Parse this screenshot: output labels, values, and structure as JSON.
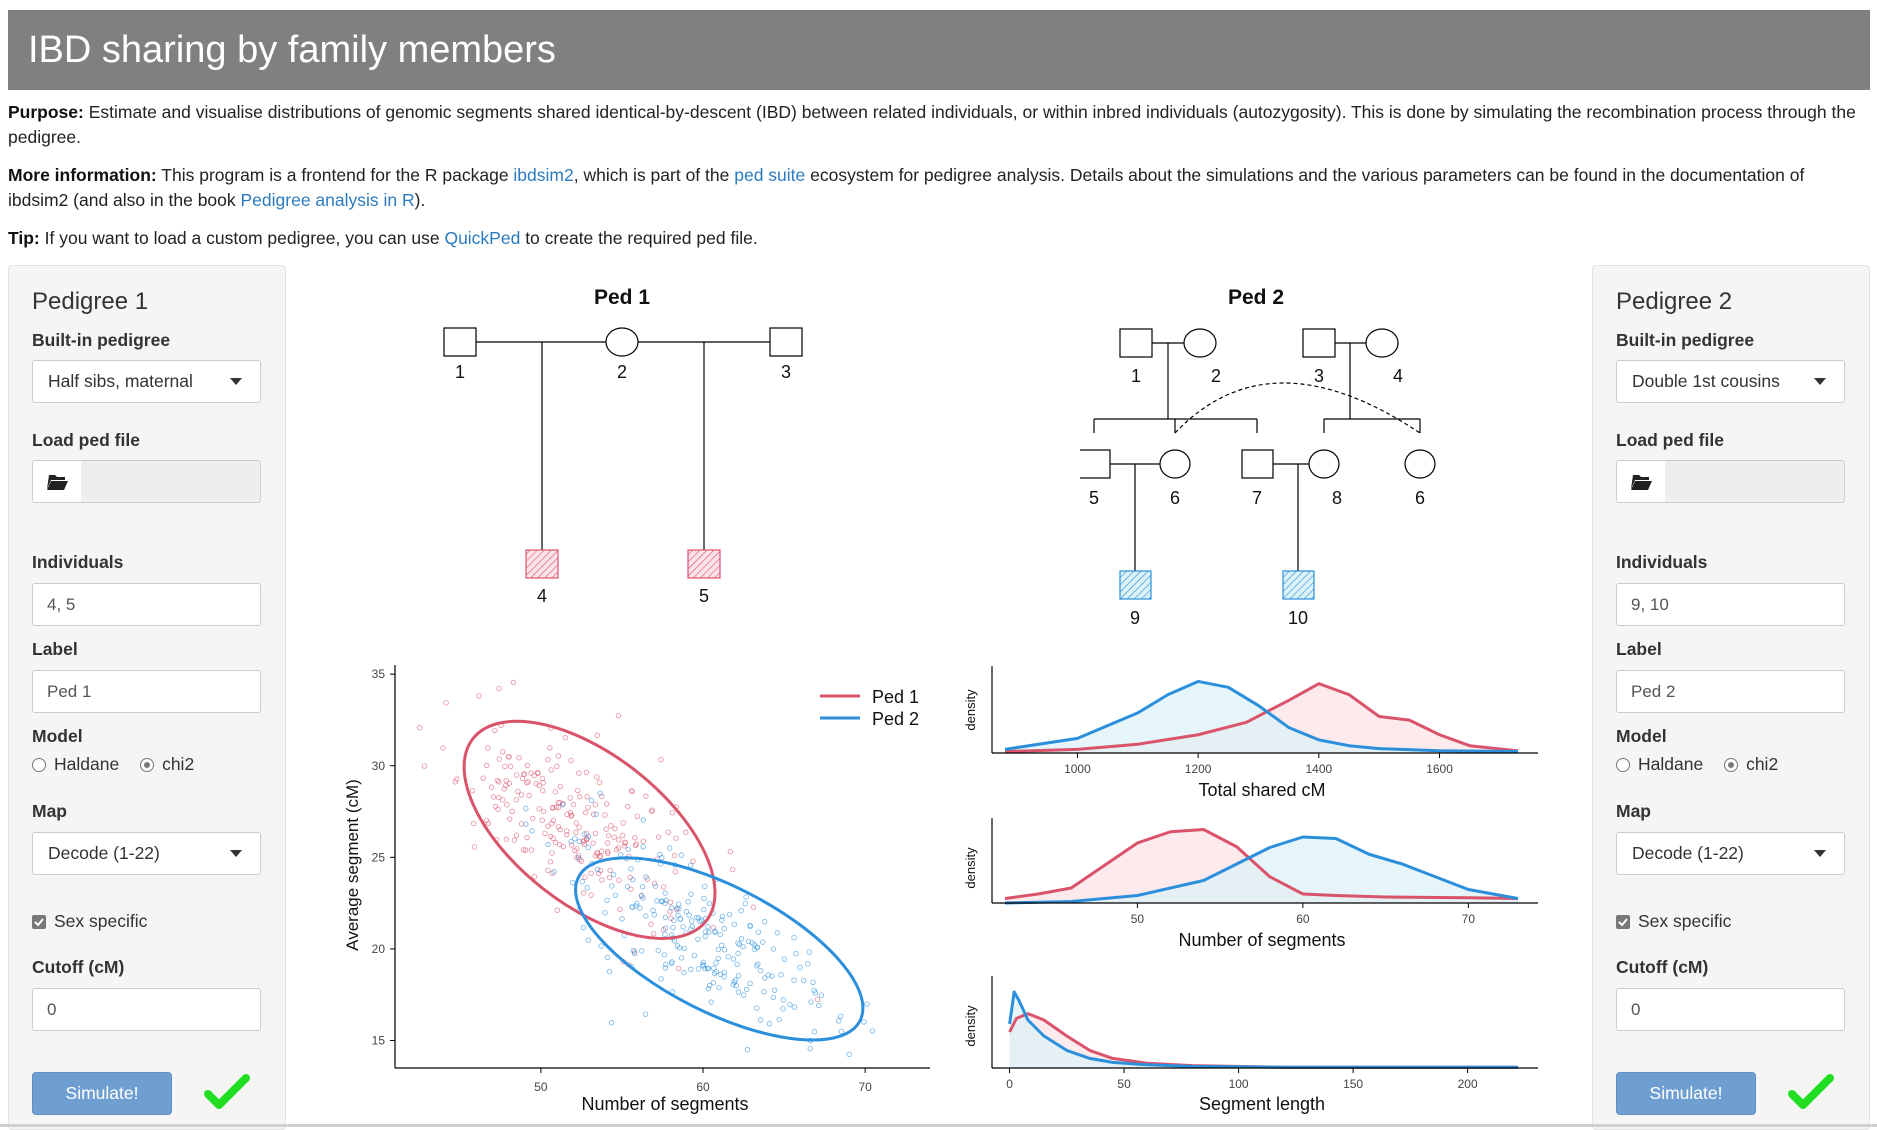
{
  "app": {
    "title": "IBD sharing by family members"
  },
  "intro": {
    "purpose_label": "Purpose:",
    "purpose_text": " Estimate and visualise distributions of genomic segments shared identical-by-descent (IBD) between related individuals, or within inbred individuals (autozygosity). This is done by simulating the recombination process through the pedigree.",
    "more_label": "More information:",
    "more_text_1": " This program is a frontend for the R package ",
    "more_link_1": "ibdsim2",
    "more_text_2": ", which is part of the ",
    "more_link_2": "ped suite",
    "more_text_3": " ecosystem for pedigree analysis. Details about the simulations and the various parameters can be found in the documentation of ibdsim2 (and also in the book ",
    "more_link_3": "Pedigree analysis in R",
    "more_text_4": ").",
    "tip_label": "Tip:",
    "tip_text_1": " If you want to load a custom pedigree, you can use ",
    "tip_link": "QuickPed",
    "tip_text_2": " to create the required ped file."
  },
  "panel1": {
    "title": "Pedigree 1",
    "builtin_label": "Built-in pedigree",
    "builtin_value": "Half sibs, maternal",
    "load_label": "Load ped file",
    "individuals_label": "Individuals",
    "individuals_value": "4, 5",
    "label_label": "Label",
    "label_value": "Ped 1",
    "model_label": "Model",
    "model_options": [
      "Haldane",
      "chi2"
    ],
    "model_selected": "chi2",
    "map_label": "Map",
    "map_value": "Decode (1-22)",
    "sex_specific_label": "Sex specific",
    "sex_specific_checked": true,
    "cutoff_label": "Cutoff (cM)",
    "cutoff_value": "0",
    "simulate_label": "Simulate!"
  },
  "panel2": {
    "title": "Pedigree 2",
    "builtin_label": "Built-in pedigree",
    "builtin_value": "Double 1st cousins",
    "load_label": "Load ped file",
    "individuals_label": "Individuals",
    "individuals_value": "9, 10",
    "label_label": "Label",
    "label_value": "Ped 2",
    "model_label": "Model",
    "model_options": [
      "Haldane",
      "chi2"
    ],
    "model_selected": "chi2",
    "map_label": "Map",
    "map_value": "Decode (1-22)",
    "sex_specific_label": "Sex specific",
    "sex_specific_checked": true,
    "cutoff_label": "Cutoff (cM)",
    "cutoff_value": "0",
    "simulate_label": "Simulate!"
  },
  "pedigrees": {
    "ped1_title": "Ped 1",
    "ped1_ids": [
      "1",
      "2",
      "3",
      "4",
      "5"
    ],
    "ped2_title": "Ped 2",
    "ped2_ids": [
      "1",
      "2",
      "3",
      "4",
      "5",
      "6",
      "7",
      "8",
      "6",
      "9",
      "10"
    ]
  },
  "colors": {
    "ped1": "#d9536b",
    "ped2": "#2b8fdb",
    "ped1_fill": "#fbe3e7",
    "ped2_fill": "#ddf2f7"
  },
  "icons": {
    "check": "check-icon",
    "folder": "folder-open-icon",
    "caret": "caret-down-icon"
  },
  "chart_data": [
    {
      "type": "scatter",
      "xlabel": "Number of segments",
      "ylabel": "Average segment (cM)",
      "xticks": [
        "50",
        "60",
        "70"
      ],
      "yticks": [
        "15",
        "20",
        "25",
        "30",
        "35"
      ],
      "xlim": [
        41,
        74
      ],
      "ylim": [
        13.5,
        35.5
      ],
      "legend": "top-right",
      "series": [
        {
          "name": "Ped 1",
          "ellipse_center": [
            53,
            26.5
          ],
          "cloud_center": [
            52,
            27
          ]
        },
        {
          "name": "Ped 2",
          "ellipse_center": [
            61,
            20
          ],
          "cloud_center": [
            60,
            20.5
          ]
        }
      ]
    },
    {
      "type": "area",
      "xlabel": "Total shared cM",
      "ylabel": "density",
      "xticks": [
        "1000",
        "1200",
        "1400",
        "1600"
      ],
      "xlim": [
        880,
        1730
      ],
      "series": [
        {
          "name": "Ped 1",
          "x": [
            880,
            1000,
            1100,
            1200,
            1280,
            1350,
            1400,
            1450,
            1500,
            1550,
            1600,
            1650,
            1730
          ],
          "y": [
            0.02,
            0.05,
            0.12,
            0.25,
            0.42,
            0.72,
            0.95,
            0.8,
            0.5,
            0.45,
            0.25,
            0.1,
            0.03
          ]
        },
        {
          "name": "Ped 2",
          "x": [
            880,
            1000,
            1100,
            1150,
            1200,
            1250,
            1300,
            1350,
            1400,
            1450,
            1500,
            1600,
            1730
          ],
          "y": [
            0.05,
            0.2,
            0.55,
            0.8,
            0.98,
            0.9,
            0.65,
            0.35,
            0.18,
            0.1,
            0.06,
            0.03,
            0.02
          ]
        }
      ]
    },
    {
      "type": "area",
      "xlabel": "Number of segments",
      "ylabel": "density",
      "xticks": [
        "50",
        "60",
        "70"
      ],
      "xlim": [
        42,
        73
      ],
      "series": [
        {
          "name": "Ped 1",
          "x": [
            42,
            44,
            46,
            48,
            50,
            52,
            54,
            56,
            57,
            58,
            60,
            62,
            65,
            70,
            73
          ],
          "y": [
            0.06,
            0.12,
            0.2,
            0.5,
            0.8,
            0.95,
            0.98,
            0.75,
            0.55,
            0.35,
            0.12,
            0.1,
            0.08,
            0.07,
            0.06
          ]
        },
        {
          "name": "Ped 2",
          "x": [
            42,
            46,
            50,
            54,
            56,
            58,
            60,
            62,
            64,
            66,
            68,
            70,
            73
          ],
          "y": [
            0.0,
            0.02,
            0.1,
            0.3,
            0.52,
            0.74,
            0.88,
            0.86,
            0.65,
            0.52,
            0.35,
            0.18,
            0.06
          ]
        }
      ]
    },
    {
      "type": "area",
      "xlabel": "Segment length",
      "ylabel": "density",
      "xticks": [
        "0",
        "50",
        "100",
        "150",
        "200"
      ],
      "xlim": [
        -2,
        222
      ],
      "series": [
        {
          "name": "Ped 1",
          "x": [
            0,
            3,
            8,
            15,
            25,
            35,
            45,
            60,
            80,
            120,
            222
          ],
          "y": [
            0.45,
            0.62,
            0.68,
            0.6,
            0.4,
            0.22,
            0.12,
            0.06,
            0.03,
            0.01,
            0.01
          ]
        },
        {
          "name": "Ped 2",
          "x": [
            0,
            2,
            4,
            8,
            15,
            25,
            35,
            45,
            60,
            80,
            120,
            222
          ],
          "y": [
            0.55,
            0.95,
            0.85,
            0.6,
            0.4,
            0.22,
            0.12,
            0.07,
            0.04,
            0.02,
            0.01,
            0.01
          ]
        }
      ]
    }
  ]
}
